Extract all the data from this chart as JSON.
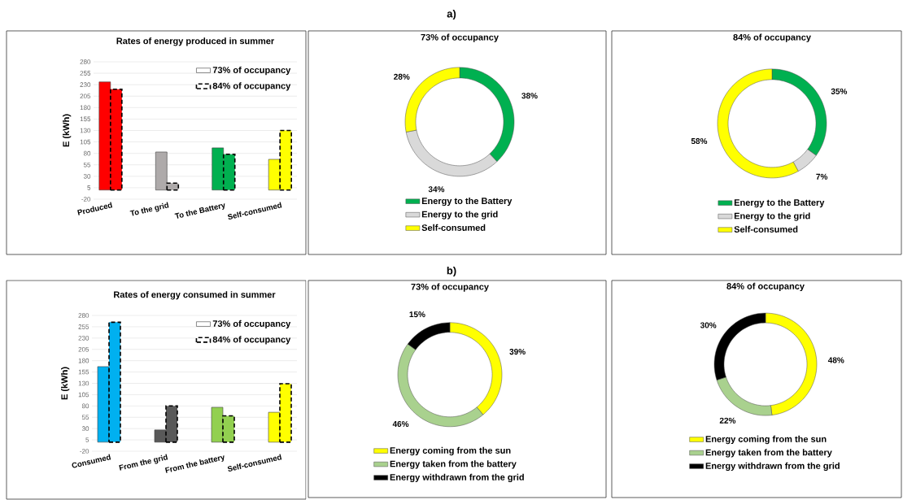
{
  "chart_data": [
    {
      "type": "bar",
      "title": "Rates of energy produced in summer",
      "ylabel": "E (kWh)",
      "categories": [
        "Produced",
        "To the grid",
        "To the Battery",
        "Self-consumed"
      ],
      "series": [
        {
          "name": "73% of occupancy",
          "line_style": "solid",
          "colors": [
            "#ff0000",
            "#aeaaaa",
            "#00b050",
            "#ffff00"
          ],
          "values": [
            236,
            83,
            92,
            67
          ]
        },
        {
          "name": "84% of occupancy",
          "line_style": "dashed",
          "colors": [
            "#ff0000",
            "#aeaaaa",
            "#00b050",
            "#ffff00"
          ],
          "values": [
            220,
            15,
            78,
            130
          ]
        }
      ],
      "ylim": [
        -20,
        280
      ],
      "yticks": [
        -20,
        5,
        30,
        55,
        80,
        105,
        130,
        155,
        180,
        205,
        230,
        255,
        280
      ],
      "grid": "y",
      "legend": "top right",
      "annotations": [
        "a)"
      ]
    },
    {
      "type": "donut",
      "title": "73% of occupancy",
      "categories": [
        "Energy to the Battery",
        "Energy to the grid",
        "Self-consumed"
      ],
      "values": [
        38,
        34,
        28
      ],
      "colors": [
        "#00b050",
        "#d9d9d9",
        "#ffff00"
      ],
      "value_labels": [
        "38%",
        "34%",
        "28%"
      ],
      "legend": "bottom"
    },
    {
      "type": "donut",
      "title": "84% of occupancy",
      "categories": [
        "Energy to the Battery",
        "Energy to the grid",
        "Self-consumed"
      ],
      "values": [
        35,
        7,
        58
      ],
      "colors": [
        "#00b050",
        "#d9d9d9",
        "#ffff00"
      ],
      "value_labels": [
        "35%",
        "7%",
        "58%"
      ],
      "legend": "bottom"
    },
    {
      "type": "bar",
      "title": "Rates of energy consumed  in summer",
      "ylabel": "E (kWh)",
      "categories": [
        "Consumed",
        "From the grid",
        "From the battery",
        "Self-consumed"
      ],
      "series": [
        {
          "name": "73% of occupancy",
          "line_style": "solid",
          "colors": [
            "#00b0f0",
            "#595959",
            "#92d050",
            "#ffff00"
          ],
          "values": [
            167,
            27,
            77,
            66
          ]
        },
        {
          "name": "84% of occupancy",
          "line_style": "dashed",
          "colors": [
            "#00b0f0",
            "#595959",
            "#92d050",
            "#ffff00"
          ],
          "values": [
            265,
            80,
            58,
            129
          ]
        }
      ],
      "ylim": [
        -20,
        280
      ],
      "yticks": [
        -20,
        5,
        30,
        55,
        80,
        105,
        130,
        155,
        180,
        205,
        230,
        255,
        280
      ],
      "grid": "y",
      "legend": "top right",
      "annotations": [
        "b)"
      ]
    },
    {
      "type": "donut",
      "title": "73% of occupancy",
      "categories": [
        "Energy coming from the sun",
        "Energy taken from the battery",
        "Energy withdrawn from the grid"
      ],
      "values": [
        39,
        46,
        15
      ],
      "colors": [
        "#ffff00",
        "#a9d18e",
        "#000000"
      ],
      "value_labels": [
        "39%",
        "46%",
        "15%"
      ],
      "legend": "bottom"
    },
    {
      "type": "donut",
      "title": "84% of occupancy",
      "categories": [
        "Energy coming from the sun",
        "Energy taken from the battery",
        "Energy withdrawn from the grid"
      ],
      "values": [
        48,
        22,
        30
      ],
      "colors": [
        "#ffff00",
        "#a9d18e",
        "#000000"
      ],
      "value_labels": [
        "48%",
        "22%",
        "30%"
      ],
      "legend": "bottom"
    }
  ]
}
